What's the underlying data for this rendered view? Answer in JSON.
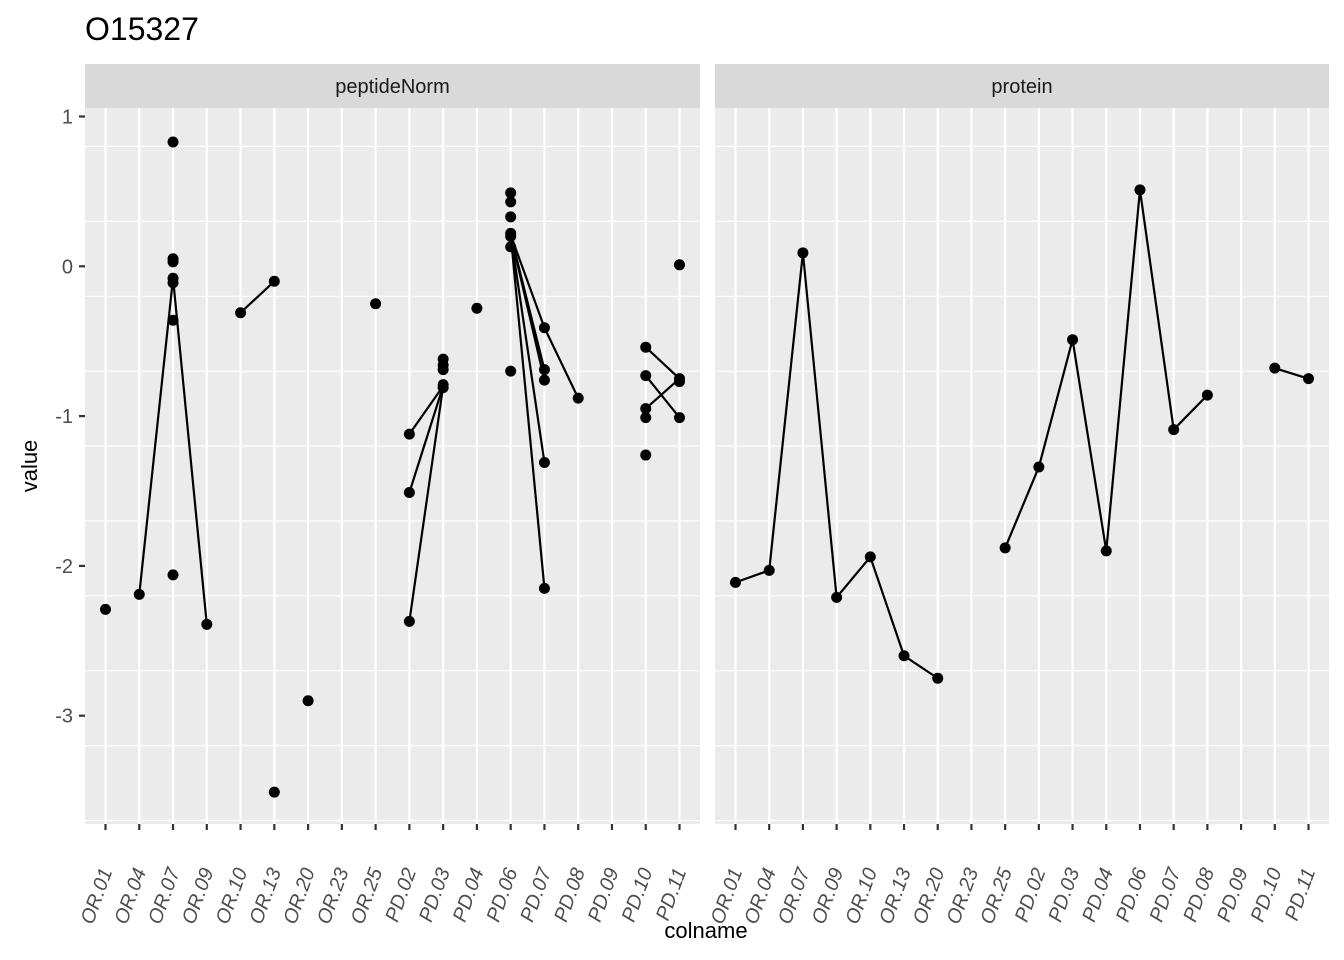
{
  "chart_data": {
    "type": "line",
    "title": "O15327",
    "xlabel": "colname",
    "ylabel": "value",
    "ylim": [
      -3.7,
      1.05
    ],
    "yticks": [
      1,
      0,
      -1,
      -2,
      -3
    ],
    "grid": true,
    "categories": [
      "OR.01",
      "OR.04",
      "OR.07",
      "OR.09",
      "OR.10",
      "OR.13",
      "OR.20",
      "OR.23",
      "OR.25",
      "PD.02",
      "PD.03",
      "PD.04",
      "PD.06",
      "PD.07",
      "PD.08",
      "PD.09",
      "PD.10",
      "PD.11"
    ],
    "panels": [
      {
        "name": "peptideNorm",
        "lines": [
          [
            [
              "OR.04",
              -2.19
            ],
            [
              "OR.07",
              -0.08
            ],
            [
              "OR.09",
              -2.39
            ]
          ],
          [
            [
              "OR.10",
              -0.31
            ],
            [
              "OR.13",
              -0.1
            ]
          ],
          [
            [
              "PD.02",
              -1.12
            ],
            [
              "PD.03",
              -0.8
            ]
          ],
          [
            [
              "PD.02",
              -1.51
            ],
            [
              "PD.03",
              -0.8
            ]
          ],
          [
            [
              "PD.02",
              -2.37
            ],
            [
              "PD.03",
              -0.8
            ]
          ],
          [
            [
              "PD.06",
              0.21
            ],
            [
              "PD.07",
              -0.41
            ],
            [
              "PD.08",
              -0.88
            ]
          ],
          [
            [
              "PD.06",
              0.21
            ],
            [
              "PD.07",
              -0.69
            ]
          ],
          [
            [
              "PD.06",
              0.21
            ],
            [
              "PD.07",
              -0.76
            ]
          ],
          [
            [
              "PD.06",
              0.21
            ],
            [
              "PD.07",
              -1.31
            ]
          ],
          [
            [
              "PD.06",
              0.21
            ],
            [
              "PD.07",
              -2.15
            ]
          ],
          [
            [
              "PD.10",
              -0.54
            ],
            [
              "PD.11",
              -0.75
            ]
          ],
          [
            [
              "PD.10",
              -0.73
            ],
            [
              "PD.11",
              -1.01
            ]
          ],
          [
            [
              "PD.10",
              -0.95
            ],
            [
              "PD.11",
              -0.75
            ]
          ]
        ],
        "points": [
          [
            "OR.01",
            -2.29
          ],
          [
            "OR.04",
            -2.19
          ],
          [
            "OR.07",
            0.83
          ],
          [
            "OR.07",
            0.05
          ],
          [
            "OR.07",
            0.03
          ],
          [
            "OR.07",
            -0.08
          ],
          [
            "OR.07",
            -0.11
          ],
          [
            "OR.07",
            -0.36
          ],
          [
            "OR.07",
            -2.06
          ],
          [
            "OR.09",
            -2.39
          ],
          [
            "OR.10",
            -0.31
          ],
          [
            "OR.13",
            -0.1
          ],
          [
            "OR.13",
            -3.51
          ],
          [
            "OR.20",
            -2.9
          ],
          [
            "OR.25",
            -0.25
          ],
          [
            "PD.02",
            -1.12
          ],
          [
            "PD.02",
            -1.51
          ],
          [
            "PD.02",
            -2.37
          ],
          [
            "PD.03",
            -0.62
          ],
          [
            "PD.03",
            -0.66
          ],
          [
            "PD.03",
            -0.69
          ],
          [
            "PD.03",
            -0.79
          ],
          [
            "PD.03",
            -0.81
          ],
          [
            "PD.04",
            -0.28
          ],
          [
            "PD.06",
            0.49
          ],
          [
            "PD.06",
            0.43
          ],
          [
            "PD.06",
            0.33
          ],
          [
            "PD.06",
            0.22
          ],
          [
            "PD.06",
            0.2
          ],
          [
            "PD.06",
            0.13
          ],
          [
            "PD.06",
            -0.7
          ],
          [
            "PD.07",
            -0.41
          ],
          [
            "PD.07",
            -0.69
          ],
          [
            "PD.07",
            -0.76
          ],
          [
            "PD.07",
            -1.31
          ],
          [
            "PD.07",
            -2.15
          ],
          [
            "PD.08",
            -0.88
          ],
          [
            "PD.10",
            -0.54
          ],
          [
            "PD.10",
            -0.73
          ],
          [
            "PD.10",
            -0.95
          ],
          [
            "PD.10",
            -1.01
          ],
          [
            "PD.10",
            -1.26
          ],
          [
            "PD.11",
            0.01
          ],
          [
            "PD.11",
            -0.75
          ],
          [
            "PD.11",
            -0.77
          ],
          [
            "PD.11",
            -1.01
          ]
        ]
      },
      {
        "name": "protein",
        "lines": [
          [
            [
              "OR.01",
              -2.11
            ],
            [
              "OR.04",
              -2.03
            ],
            [
              "OR.07",
              0.09
            ],
            [
              "OR.09",
              -2.21
            ],
            [
              "OR.10",
              -1.94
            ],
            [
              "OR.13",
              -2.6
            ],
            [
              "OR.20",
              -2.75
            ]
          ],
          [
            [
              "OR.25",
              -1.88
            ],
            [
              "PD.02",
              -1.34
            ],
            [
              "PD.03",
              -0.49
            ],
            [
              "PD.04",
              -1.9
            ],
            [
              "PD.06",
              0.51
            ],
            [
              "PD.07",
              -1.09
            ],
            [
              "PD.08",
              -0.86
            ]
          ],
          [
            [
              "PD.10",
              -0.68
            ],
            [
              "PD.11",
              -0.75
            ]
          ]
        ],
        "points": [
          [
            "OR.01",
            -2.11
          ],
          [
            "OR.04",
            -2.03
          ],
          [
            "OR.07",
            0.09
          ],
          [
            "OR.09",
            -2.21
          ],
          [
            "OR.10",
            -1.94
          ],
          [
            "OR.13",
            -2.6
          ],
          [
            "OR.20",
            -2.75
          ],
          [
            "OR.25",
            -1.88
          ],
          [
            "PD.02",
            -1.34
          ],
          [
            "PD.03",
            -0.49
          ],
          [
            "PD.04",
            -1.9
          ],
          [
            "PD.06",
            0.51
          ],
          [
            "PD.07",
            -1.09
          ],
          [
            "PD.08",
            -0.86
          ],
          [
            "PD.10",
            -0.68
          ],
          [
            "PD.11",
            -0.75
          ]
        ]
      }
    ]
  },
  "colors": {
    "panel_bg": "#ebebeb",
    "grid": "#ffffff",
    "strip_bg": "#d9d9d9",
    "ink": "#000000",
    "tick_text": "#4d4d4d",
    "strip_text": "#1a1a1a"
  }
}
